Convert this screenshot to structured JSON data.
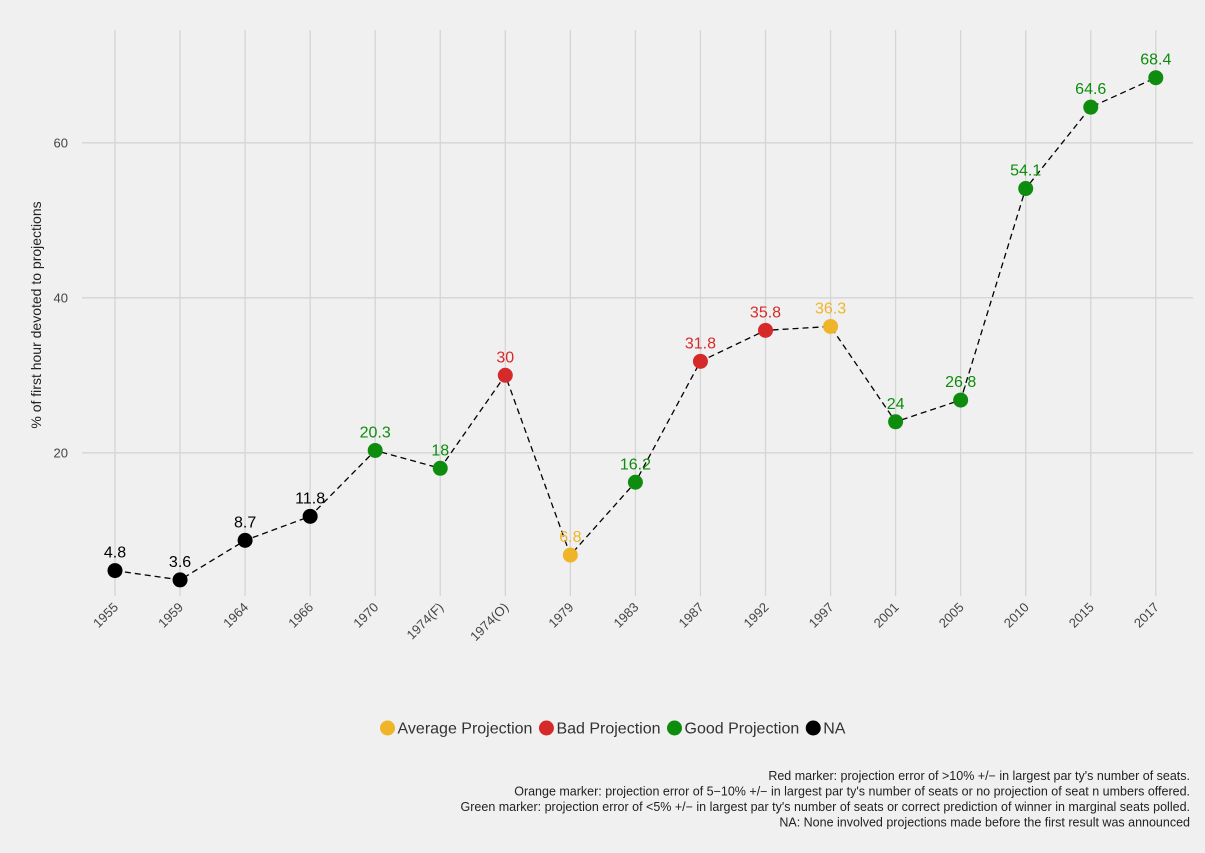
{
  "chart_data": {
    "type": "line",
    "ylabel": "% of first hour devoted to projections",
    "xlabel": "",
    "ylim": [
      0,
      72
    ],
    "yticks": [
      20,
      40,
      60
    ],
    "grid": true,
    "line_style": "dashed",
    "line_color": "#000000",
    "categories": [
      "1955",
      "1959",
      "1964",
      "1966",
      "1970",
      "1974(F)",
      "1974(O)",
      "1979",
      "1983",
      "1987",
      "1992",
      "1997",
      "2001",
      "2005",
      "2010",
      "2015",
      "2017"
    ],
    "points": [
      {
        "x": "1955",
        "y": 4.8,
        "label": "4.8",
        "category": "NA"
      },
      {
        "x": "1959",
        "y": 3.6,
        "label": "3.6",
        "category": "NA"
      },
      {
        "x": "1964",
        "y": 8.7,
        "label": "8.7",
        "category": "NA"
      },
      {
        "x": "1966",
        "y": 11.8,
        "label": "11.8",
        "category": "NA"
      },
      {
        "x": "1970",
        "y": 20.3,
        "label": "20.3",
        "category": "Good Projection"
      },
      {
        "x": "1974(F)",
        "y": 18,
        "label": "18",
        "category": "Good Projection"
      },
      {
        "x": "1974(O)",
        "y": 30,
        "label": "30",
        "category": "Bad Projection"
      },
      {
        "x": "1979",
        "y": 6.8,
        "label": "6.8",
        "category": "Average Projection"
      },
      {
        "x": "1983",
        "y": 16.2,
        "label": "16.2",
        "category": "Good Projection"
      },
      {
        "x": "1987",
        "y": 31.8,
        "label": "31.8",
        "category": "Bad Projection"
      },
      {
        "x": "1992",
        "y": 35.8,
        "label": "35.8",
        "category": "Bad Projection"
      },
      {
        "x": "1997",
        "y": 36.3,
        "label": "36.3",
        "category": "Average Projection"
      },
      {
        "x": "2001",
        "y": 24,
        "label": "24",
        "category": "Good Projection"
      },
      {
        "x": "2005",
        "y": 26.8,
        "label": "26.8",
        "category": "Good Projection"
      },
      {
        "x": "2010",
        "y": 54.1,
        "label": "54.1",
        "category": "Good Projection"
      },
      {
        "x": "2015",
        "y": 64.6,
        "label": "64.6",
        "category": "Good Projection"
      },
      {
        "x": "2017",
        "y": 68.4,
        "label": "68.4",
        "category": "Good Projection"
      }
    ],
    "legend": {
      "placement": "bottom",
      "items": [
        {
          "name": "Average Projection",
          "color": "#f0b429"
        },
        {
          "name": "Bad Projection",
          "color": "#d62a2a"
        },
        {
          "name": "Good Projection",
          "color": "#0e8c0e"
        },
        {
          "name": "NA",
          "color": "#000000"
        }
      ]
    },
    "caption": [
      "Red marker: projection error of >10% +/− in largest par ty's number of seats.",
      "Orange marker: projection error of 5−10% +/− in largest par ty's number of seats or no projection of seat n umbers offered.",
      "Green marker: projection error of <5% +/− in largest par ty's number of seats or correct prediction of winner in marginal seats polled.",
      "NA: None involved projections made before the first result was announced"
    ]
  }
}
